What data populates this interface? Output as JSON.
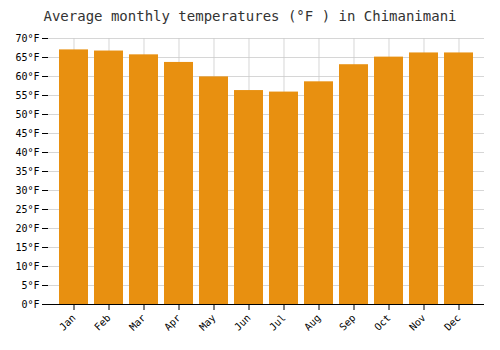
{
  "chart_data": {
    "type": "bar",
    "title": "Average monthly temperatures (°F ) in Chimanimani",
    "categories": [
      "Jan",
      "Feb",
      "Mar",
      "Apr",
      "May",
      "Jun",
      "Jul",
      "Aug",
      "Sep",
      "Oct",
      "Nov",
      "Dec"
    ],
    "values": [
      67.0,
      66.7,
      65.7,
      63.7,
      59.9,
      56.3,
      55.9,
      58.6,
      63.1,
      65.1,
      66.2,
      66.2
    ],
    "color": "#E89010",
    "ylim": [
      0,
      70
    ],
    "yticks": [
      {
        "value": 0,
        "label": "0°F"
      },
      {
        "value": 5,
        "label": "5°F"
      },
      {
        "value": 10,
        "label": "10°F"
      },
      {
        "value": 15,
        "label": "15°F"
      },
      {
        "value": 20,
        "label": "20°F"
      },
      {
        "value": 25,
        "label": "25°F"
      },
      {
        "value": 30,
        "label": "30°F"
      },
      {
        "value": 35,
        "label": "35°F"
      },
      {
        "value": 40,
        "label": "40°F"
      },
      {
        "value": 45,
        "label": "45°F"
      },
      {
        "value": 50,
        "label": "50°F"
      },
      {
        "value": 55,
        "label": "55°F"
      },
      {
        "value": 60,
        "label": "60°F"
      },
      {
        "value": 65,
        "label": "65°F"
      },
      {
        "value": 70,
        "label": "70°F"
      }
    ],
    "grid": true
  }
}
